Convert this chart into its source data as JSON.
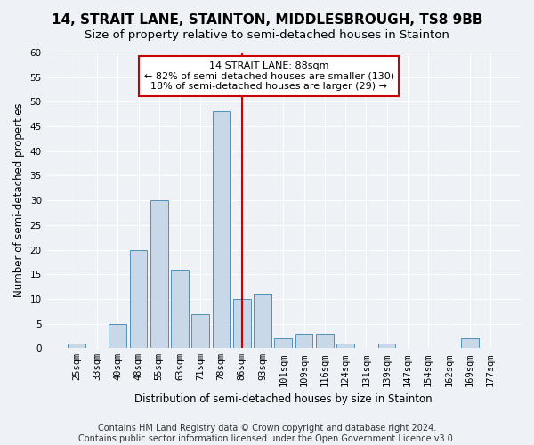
{
  "title": "14, STRAIT LANE, STAINTON, MIDDLESBROUGH, TS8 9BB",
  "subtitle": "Size of property relative to semi-detached houses in Stainton",
  "xlabel": "Distribution of semi-detached houses by size in Stainton",
  "ylabel": "Number of semi-detached properties",
  "footer1": "Contains HM Land Registry data © Crown copyright and database right 2024.",
  "footer2": "Contains public sector information licensed under the Open Government Licence v3.0.",
  "bin_labels": [
    "25sqm",
    "33sqm",
    "40sqm",
    "48sqm",
    "55sqm",
    "63sqm",
    "71sqm",
    "78sqm",
    "86sqm",
    "93sqm",
    "101sqm",
    "109sqm",
    "116sqm",
    "124sqm",
    "131sqm",
    "139sqm",
    "147sqm",
    "154sqm",
    "162sqm",
    "169sqm",
    "177sqm"
  ],
  "bar_values": [
    1,
    0,
    5,
    20,
    30,
    16,
    7,
    48,
    10,
    11,
    2,
    3,
    3,
    1,
    0,
    1,
    0,
    0,
    0,
    2,
    0
  ],
  "bar_color": "#c8d8e8",
  "bar_edge_color": "#5090b8",
  "property_label": "14 STRAIT LANE: 88sqm",
  "pct_smaller": 82,
  "count_smaller": 130,
  "pct_larger": 18,
  "count_larger": 29,
  "vline_color": "#cc0000",
  "annotation_box_color": "#cc0000",
  "ylim": [
    0,
    60
  ],
  "yticks": [
    0,
    5,
    10,
    15,
    20,
    25,
    30,
    35,
    40,
    45,
    50,
    55,
    60
  ],
  "background_color": "#eef2f7",
  "grid_color": "#ffffff",
  "title_fontsize": 11,
  "subtitle_fontsize": 9.5,
  "axis_label_fontsize": 8.5,
  "tick_fontsize": 7.5,
  "footer_fontsize": 7,
  "annotation_fontsize": 8
}
